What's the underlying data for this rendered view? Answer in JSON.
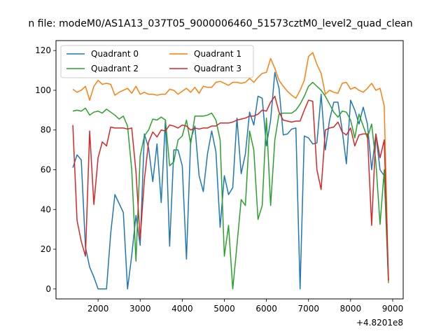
{
  "chart_data": {
    "type": "line",
    "title": "n file: modeM0/AS1A13_037T05_9000006460_51573cztM0_level2_quad_clean",
    "xlabel": "",
    "ylabel": "",
    "x_offset_label": "+4.8201e8",
    "xlim": [
      1000,
      9250
    ],
    "ylim": [
      -5,
      125
    ],
    "x_ticks": [
      2000,
      3000,
      4000,
      5000,
      6000,
      7000,
      8000,
      9000
    ],
    "x_tick_labels": [
      "2000",
      "3000",
      "4000",
      "5000",
      "6000",
      "7000",
      "8000",
      "9000"
    ],
    "y_ticks": [
      0,
      20,
      40,
      60,
      80,
      100,
      120
    ],
    "y_tick_labels": [
      "0",
      "20",
      "40",
      "60",
      "80",
      "100",
      "120"
    ],
    "grid": false,
    "legend": {
      "placement": "top-left",
      "columns": 2
    },
    "x": [
      1400,
      1500,
      1600,
      1700,
      1800,
      1900,
      2000,
      2100,
      2200,
      2300,
      2400,
      2500,
      2600,
      2700,
      2800,
      2900,
      3000,
      3100,
      3200,
      3300,
      3400,
      3500,
      3600,
      3700,
      3800,
      3900,
      4000,
      4100,
      4200,
      4300,
      4400,
      4500,
      4600,
      4700,
      4800,
      4900,
      5000,
      5100,
      5200,
      5300,
      5400,
      5500,
      5600,
      5700,
      5800,
      5900,
      6000,
      6100,
      6200,
      6300,
      6400,
      6500,
      6600,
      6700,
      6800,
      6900,
      7000,
      7100,
      7200,
      7300,
      7400,
      7500,
      7600,
      7700,
      7800,
      7900,
      8000,
      8100,
      8200,
      8300,
      8400,
      8500,
      8600,
      8700,
      8800,
      8900
    ],
    "series": [
      {
        "name": "Quadrant 0",
        "color": "#1f77b4",
        "values": [
          61,
          67.5,
          65,
          21,
          11,
          6,
          0,
          0,
          0,
          28,
          47.5,
          43,
          38.5,
          0,
          17,
          37,
          22,
          78,
          71,
          54,
          73,
          43.5,
          85,
          21.5,
          70,
          70,
          62,
          15,
          75,
          82,
          57,
          49,
          68,
          79.5,
          69,
          31,
          57,
          47.5,
          51,
          86,
          58,
          68,
          89,
          82.5,
          97,
          96,
          72,
          85,
          109,
          101,
          77.5,
          78,
          80.5,
          81,
          0,
          77,
          76,
          73,
          73.5,
          98,
          70,
          85,
          94,
          94,
          80,
          63,
          95,
          90,
          83,
          91.5,
          83,
          60,
          78,
          60,
          57,
          3
        ]
      },
      {
        "name": "Quadrant 1",
        "color": "#ff7f0e",
        "values": [
          100.5,
          99,
          100,
          102,
          95,
          102,
          105,
          103,
          103.5,
          103,
          97.5,
          99,
          100,
          101,
          98.5,
          102,
          98,
          99,
          98,
          98,
          97.5,
          98,
          98,
          100.5,
          100,
          98,
          99.5,
          101,
          99,
          101.5,
          98.5,
          102,
          101.5,
          101.5,
          104,
          104.5,
          103.5,
          102.5,
          104,
          104,
          103.5,
          104,
          106,
          104,
          106.5,
          108.5,
          109,
          116,
          111,
          105,
          102,
          99.5,
          97.5,
          96,
          100,
          105,
          117,
          119,
          113,
          108.5,
          98,
          100,
          99,
          98.5,
          103.5,
          104,
          100.5,
          101.5,
          100,
          99,
          101,
          103.5,
          100,
          101,
          92,
          3
        ]
      },
      {
        "name": "Quadrant 2",
        "color": "#2ca02c",
        "values": [
          89.5,
          90,
          89.5,
          91,
          87.5,
          89,
          89.5,
          88.5,
          90.5,
          89,
          87.5,
          85.5,
          87,
          82,
          60,
          14,
          67,
          77,
          80,
          85.5,
          85,
          86.5,
          85,
          62,
          64,
          75,
          77,
          85,
          73,
          87,
          87,
          87,
          87.5,
          88.5,
          85,
          75,
          16.5,
          32,
          0,
          22,
          45,
          42,
          79.5,
          70,
          35,
          42,
          86,
          42,
          75,
          88,
          88.5,
          88.5,
          88.5,
          90,
          93,
          97,
          102,
          104,
          102,
          100,
          97,
          93,
          89,
          86.5,
          89.5,
          89,
          85,
          76,
          88,
          82,
          76,
          83,
          64,
          32.5,
          60,
          4
        ]
      },
      {
        "name": "Quadrant 3",
        "color": "#d62728",
        "values": [
          82.5,
          34.5,
          24,
          16.5,
          79.5,
          42.5,
          66,
          74,
          72,
          81.5,
          81,
          81,
          81,
          80.5,
          81,
          59,
          25,
          55,
          74,
          79,
          76.5,
          80,
          79.5,
          82.5,
          82,
          81,
          82.5,
          82,
          80,
          81,
          80.5,
          81,
          81,
          82,
          82,
          83.5,
          83.5,
          83.5,
          84,
          85,
          85.5,
          86,
          87,
          87,
          88,
          90,
          89.5,
          94,
          97,
          89,
          85,
          84.5,
          84,
          84.5,
          84.5,
          90,
          95,
          94.5,
          60,
          50,
          80,
          81,
          81.5,
          84,
          79,
          77.5,
          81,
          72,
          77.5,
          78,
          78,
          32,
          78,
          66,
          75,
          4.5
        ]
      }
    ]
  }
}
